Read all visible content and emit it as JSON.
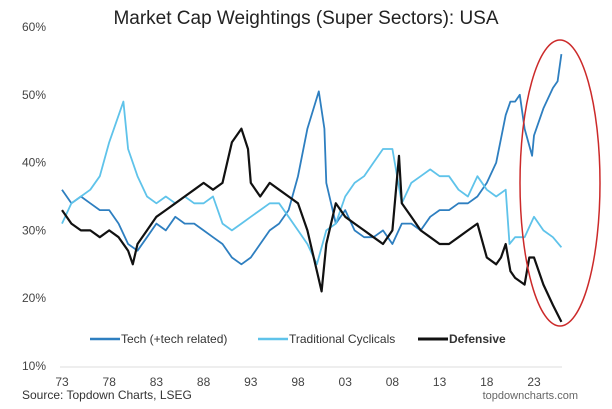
{
  "chart_data": {
    "type": "line",
    "title": "Market Cap Weightings (Super Sectors): USA",
    "xlabel": "",
    "ylabel": "",
    "xlim": [
      1973,
      2026
    ],
    "ylim": [
      10,
      60
    ],
    "x_ticks": [
      "73",
      "78",
      "83",
      "88",
      "93",
      "98",
      "03",
      "08",
      "13",
      "18",
      "23"
    ],
    "x_tick_values": [
      1973,
      1978,
      1983,
      1988,
      1993,
      1998,
      2003,
      2008,
      2013,
      2018,
      2023
    ],
    "y_ticks": [
      "10%",
      "20%",
      "30%",
      "40%",
      "50%",
      "60%"
    ],
    "y_tick_values": [
      10,
      20,
      30,
      40,
      50,
      60
    ],
    "grid": false,
    "legend_position": "bottom",
    "series": [
      {
        "name": "Tech (+tech related)",
        "color": "#2e7fc0",
        "bold": false,
        "x": [
          1973,
          1974,
          1975,
          1976,
          1977,
          1978,
          1979,
          1980,
          1981,
          1982,
          1983,
          1984,
          1985,
          1986,
          1987,
          1988,
          1989,
          1990,
          1991,
          1992,
          1993,
          1994,
          1995,
          1996,
          1997,
          1998,
          1999,
          2000.2,
          2000.8,
          2001,
          2002,
          2003,
          2004,
          2005,
          2006,
          2007,
          2008,
          2009,
          2010,
          2011,
          2012,
          2013,
          2014,
          2015,
          2016,
          2017,
          2018,
          2019,
          2020,
          2020.5,
          2021,
          2021.5,
          2022,
          2022.8,
          2023,
          2024,
          2025,
          2025.5,
          2025.9
        ],
        "y": [
          36,
          34,
          35,
          34,
          33,
          33,
          31,
          28,
          27,
          29,
          31,
          30,
          32,
          31,
          31,
          30,
          29,
          28,
          26,
          25,
          26,
          28,
          30,
          31,
          33,
          38,
          45,
          50.5,
          45,
          37,
          31,
          33,
          30,
          29,
          29,
          30,
          28,
          31,
          31,
          30,
          32,
          33,
          33,
          34,
          34,
          35,
          37,
          40,
          47,
          49,
          49,
          50,
          45,
          41,
          44,
          48,
          51,
          52,
          56
        ]
      },
      {
        "name": "Traditional Cyclicals",
        "color": "#5fc3ea",
        "bold": false,
        "x": [
          1973,
          1974,
          1975,
          1976,
          1977,
          1978,
          1979.5,
          1980,
          1981,
          1982,
          1983,
          1984,
          1985,
          1986,
          1987,
          1988,
          1989,
          1990,
          1991,
          1992,
          1993,
          1994,
          1995,
          1996,
          1997,
          1998,
          1999,
          2000,
          2001,
          2002,
          2003,
          2004,
          2005,
          2006,
          2007,
          2008,
          2009,
          2010,
          2011,
          2012,
          2013,
          2014,
          2015,
          2016,
          2017,
          2018,
          2019,
          2020,
          2020.4,
          2021,
          2022,
          2023,
          2024,
          2025,
          2025.9
        ],
        "y": [
          31,
          34,
          35,
          36,
          38,
          43,
          49,
          42,
          38,
          35,
          34,
          35,
          34,
          35,
          34,
          34,
          35,
          31,
          30,
          31,
          32,
          33,
          34,
          34,
          32,
          30,
          28,
          25,
          30,
          31,
          35,
          37,
          38,
          40,
          42,
          42,
          34,
          37,
          38,
          39,
          38,
          38,
          36,
          35,
          38,
          36,
          35,
          36,
          28,
          29,
          29,
          32,
          30,
          29,
          27.5
        ]
      },
      {
        "name": "Defensive",
        "color": "#111111",
        "bold": true,
        "x": [
          1973,
          1974,
          1975,
          1976,
          1977,
          1978,
          1979,
          1980,
          1980.5,
          1981,
          1982,
          1983,
          1984,
          1985,
          1986,
          1987,
          1988,
          1989,
          1990,
          1991,
          1992,
          1992.7,
          1993,
          1994,
          1995,
          1996,
          1997,
          1998,
          1999,
          2000,
          2000.5,
          2001,
          2002,
          2003,
          2004,
          2005,
          2006,
          2007,
          2008,
          2008.7,
          2009,
          2010,
          2011,
          2012,
          2013,
          2014,
          2015,
          2016,
          2017,
          2018,
          2019,
          2019.5,
          2020,
          2020.5,
          2021,
          2022,
          2022.5,
          2023,
          2024,
          2025,
          2025.9
        ],
        "y": [
          33,
          31,
          30,
          30,
          29,
          30,
          29,
          27,
          25,
          28,
          30,
          32,
          33,
          34,
          35,
          36,
          37,
          36,
          37,
          43,
          45,
          42,
          37,
          35,
          37,
          36,
          35,
          34,
          30,
          24,
          21,
          28,
          34,
          32,
          31,
          30,
          29,
          28,
          30,
          41,
          34,
          32,
          30,
          29,
          28,
          28,
          29,
          30,
          31,
          26,
          25,
          26,
          28,
          24,
          23,
          22,
          26,
          26,
          22,
          19,
          16.5
        ]
      }
    ],
    "annotations": [
      "red-ellipse-highlight-recent-period"
    ]
  },
  "source": "Source: Topdown Charts, LSEG",
  "website": "topdowncharts.com",
  "colors": {
    "highlight": "#cc2a2a"
  }
}
